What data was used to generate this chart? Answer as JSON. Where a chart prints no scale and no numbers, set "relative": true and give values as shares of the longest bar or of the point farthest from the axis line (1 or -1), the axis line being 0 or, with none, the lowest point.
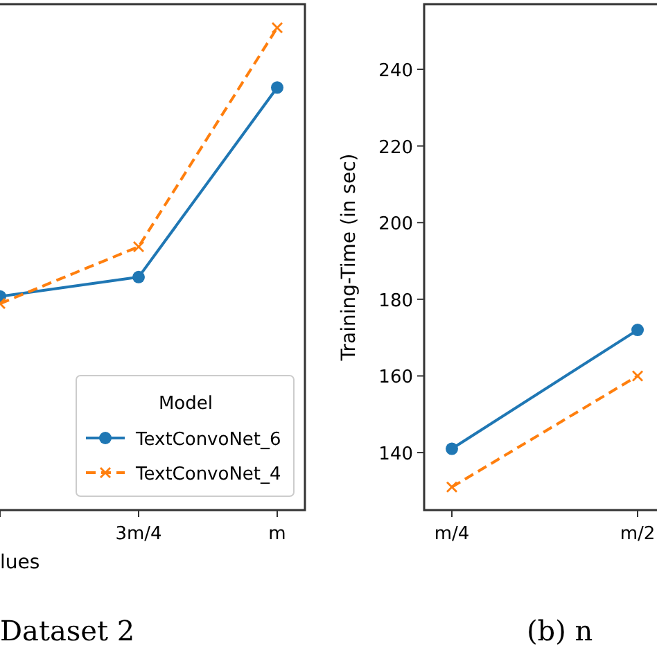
{
  "chart_data": [
    {
      "type": "line",
      "relative": true,
      "xlabel": "lues",
      "legend_title": "Model",
      "legend": "bottom right",
      "categories": [
        null,
        "3m/4",
        "m"
      ],
      "series": [
        {
          "name": "TextConvoNet_6",
          "color": "#1f77b4",
          "marker": "circle",
          "line_style": "solid",
          "values": [
            0.443,
            0.483,
            0.876
          ]
        },
        {
          "name": "TextConvoNet_4",
          "color": "#ff7f0e",
          "marker": "cross",
          "line_style": "dashed",
          "values": [
            0.428,
            0.546,
            1
          ]
        }
      ],
      "annotations": [
        "Dataset 2"
      ]
    },
    {
      "type": "line",
      "ylabel": "Training-Time (in sec)",
      "categories": [
        "m/4",
        "m/2"
      ],
      "ylim": [
        125,
        257
      ],
      "yticks": [
        140,
        160,
        180,
        200,
        220,
        240
      ],
      "series": [
        {
          "color": "#1f77b4",
          "marker": "circle",
          "line_style": "solid",
          "values": [
            141,
            172
          ]
        },
        {
          "color": "#ff7f0e",
          "marker": "cross",
          "line_style": "dashed",
          "values": [
            131,
            160
          ]
        }
      ],
      "legend": false,
      "annotations": [
        "(b) n"
      ]
    }
  ]
}
